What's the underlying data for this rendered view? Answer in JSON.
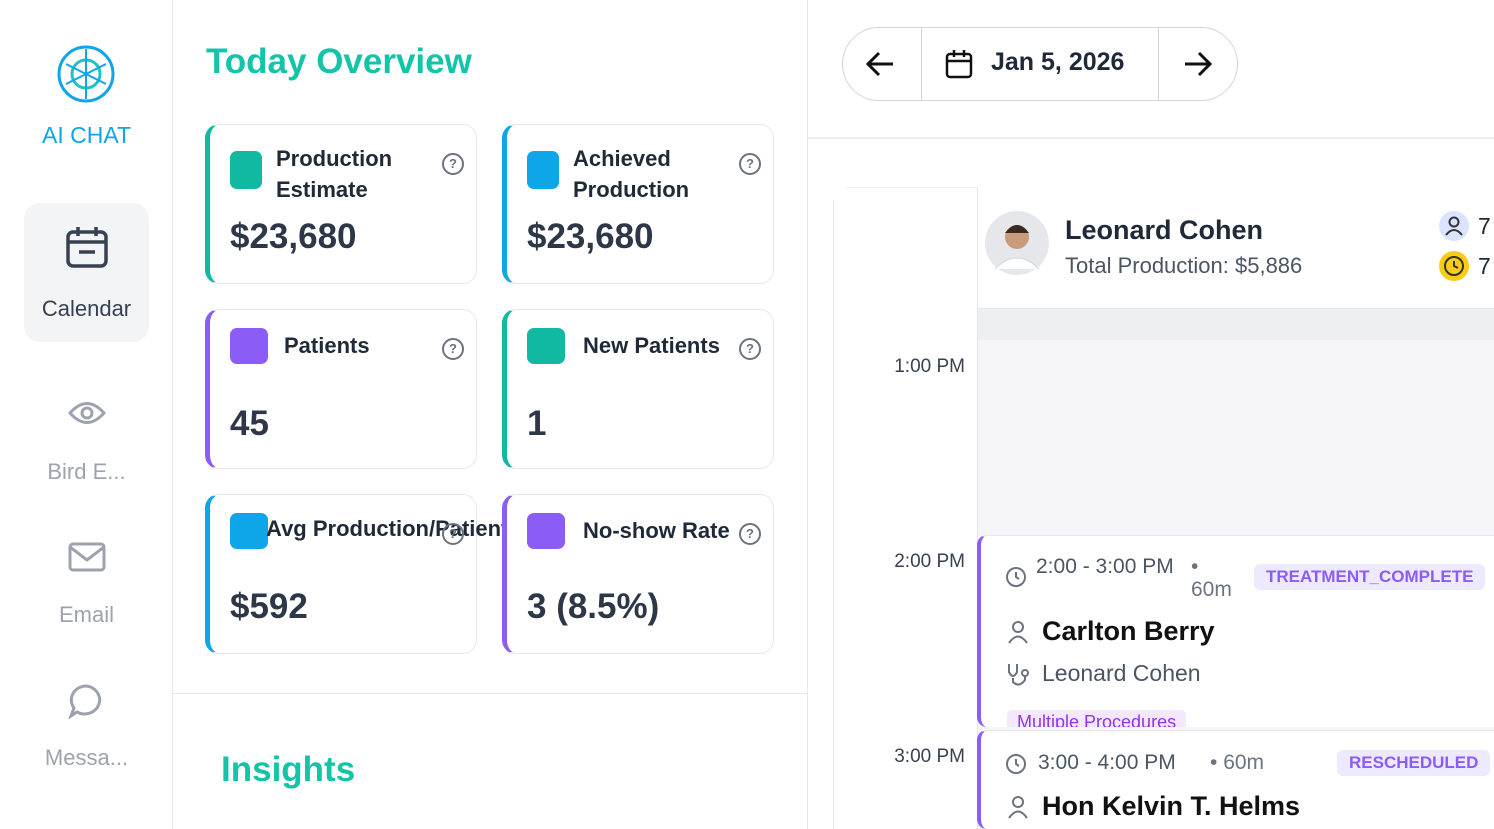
{
  "sidebar": {
    "logo_label": "AI CHAT",
    "items": [
      {
        "label": "Calendar"
      },
      {
        "label": "Bird E..."
      },
      {
        "label": "Email"
      },
      {
        "label": "Messa..."
      }
    ]
  },
  "overview": {
    "title": "Today Overview",
    "cards": [
      {
        "title": "Production Estimate",
        "value": "$23,680"
      },
      {
        "title": "Achieved Production",
        "value": "$23,680"
      },
      {
        "title": "Patients",
        "value": "45"
      },
      {
        "title": "New Patients",
        "value": "1"
      },
      {
        "title": "Avg Production/Patient",
        "value": "$592"
      },
      {
        "title": "No-show Rate",
        "value": "3 (8.5%)"
      }
    ],
    "insights_title": "Insights"
  },
  "calendar": {
    "date": "Jan 5, 2026",
    "provider": {
      "name": "Leonard Cohen",
      "production": "Total Production: $5,886",
      "patient_count": "7",
      "hour_count": "7"
    },
    "times": [
      "1:00 PM",
      "2:00 PM",
      "3:00 PM"
    ],
    "appointments": [
      {
        "time": "2:00 - 3:00 PM",
        "duration": "60m",
        "status": "TREATMENT_COMPLETE",
        "patient": "Carlton Berry",
        "provider": "Leonard Cohen",
        "procedures": "Multiple Procedures"
      },
      {
        "time": "3:00 - 4:00 PM",
        "duration": "60m",
        "status": "RESCHEDULED",
        "patient": "Hon Kelvin T. Helms"
      }
    ]
  }
}
